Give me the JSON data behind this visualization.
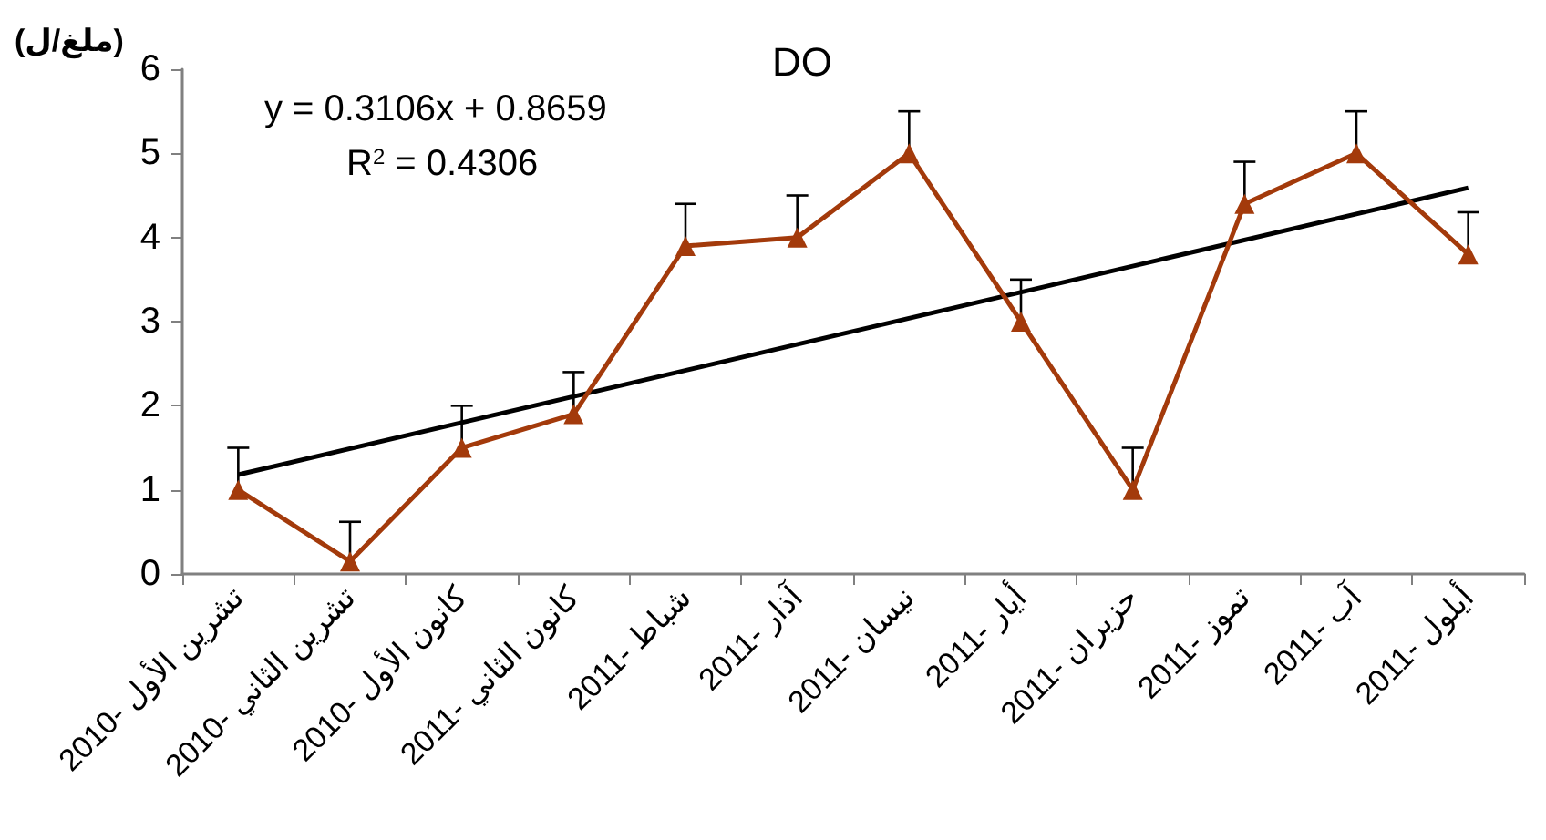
{
  "chart_data": {
    "type": "line",
    "title": "DO",
    "ylabel": "(ملغ/ل)",
    "categories": [
      "تشرين الأول -2010",
      "تشرين الثاني -2010",
      "كانون الأول -2010",
      "كانون الثاني -2011",
      "شباط -2011",
      "آذار -2011",
      "نيسان -2011",
      "أيار -2011",
      "حزيران -2011",
      "تموز -2011",
      "آب -2011",
      "أيلول -2011"
    ],
    "series": [
      {
        "color": "#a33a0b",
        "marker": "triangle",
        "values": [
          1.0,
          0.15,
          1.5,
          1.9,
          3.9,
          4.0,
          5.0,
          3.0,
          1.0,
          4.4,
          5.0,
          3.8
        ],
        "errors": [
          [
            1.0,
            1.5
          ],
          [
            0.15,
            0.62
          ],
          [
            1.5,
            2.0
          ],
          [
            1.9,
            2.4
          ],
          [
            3.9,
            4.4
          ],
          [
            4.0,
            4.5
          ],
          [
            5.0,
            5.5
          ],
          [
            3.0,
            3.5
          ],
          [
            1.0,
            1.5
          ],
          [
            4.4,
            4.9
          ],
          [
            5.0,
            5.5
          ],
          [
            3.8,
            4.3
          ]
        ]
      },
      {
        "type": "line",
        "color": "#000000",
        "marker": "none",
        "x": [
          "تشرين الأول -2010",
          "أيلول -2011"
        ],
        "values": [
          1.18,
          4.59
        ]
      }
    ],
    "ylim": [
      0,
      6
    ],
    "yticks": [
      0,
      1,
      2,
      3,
      4,
      5,
      6
    ],
    "grid": false,
    "annotations": [
      "y = 0.3106x + 0.8659",
      "R$^{2}$ = 0.4306"
    ]
  }
}
